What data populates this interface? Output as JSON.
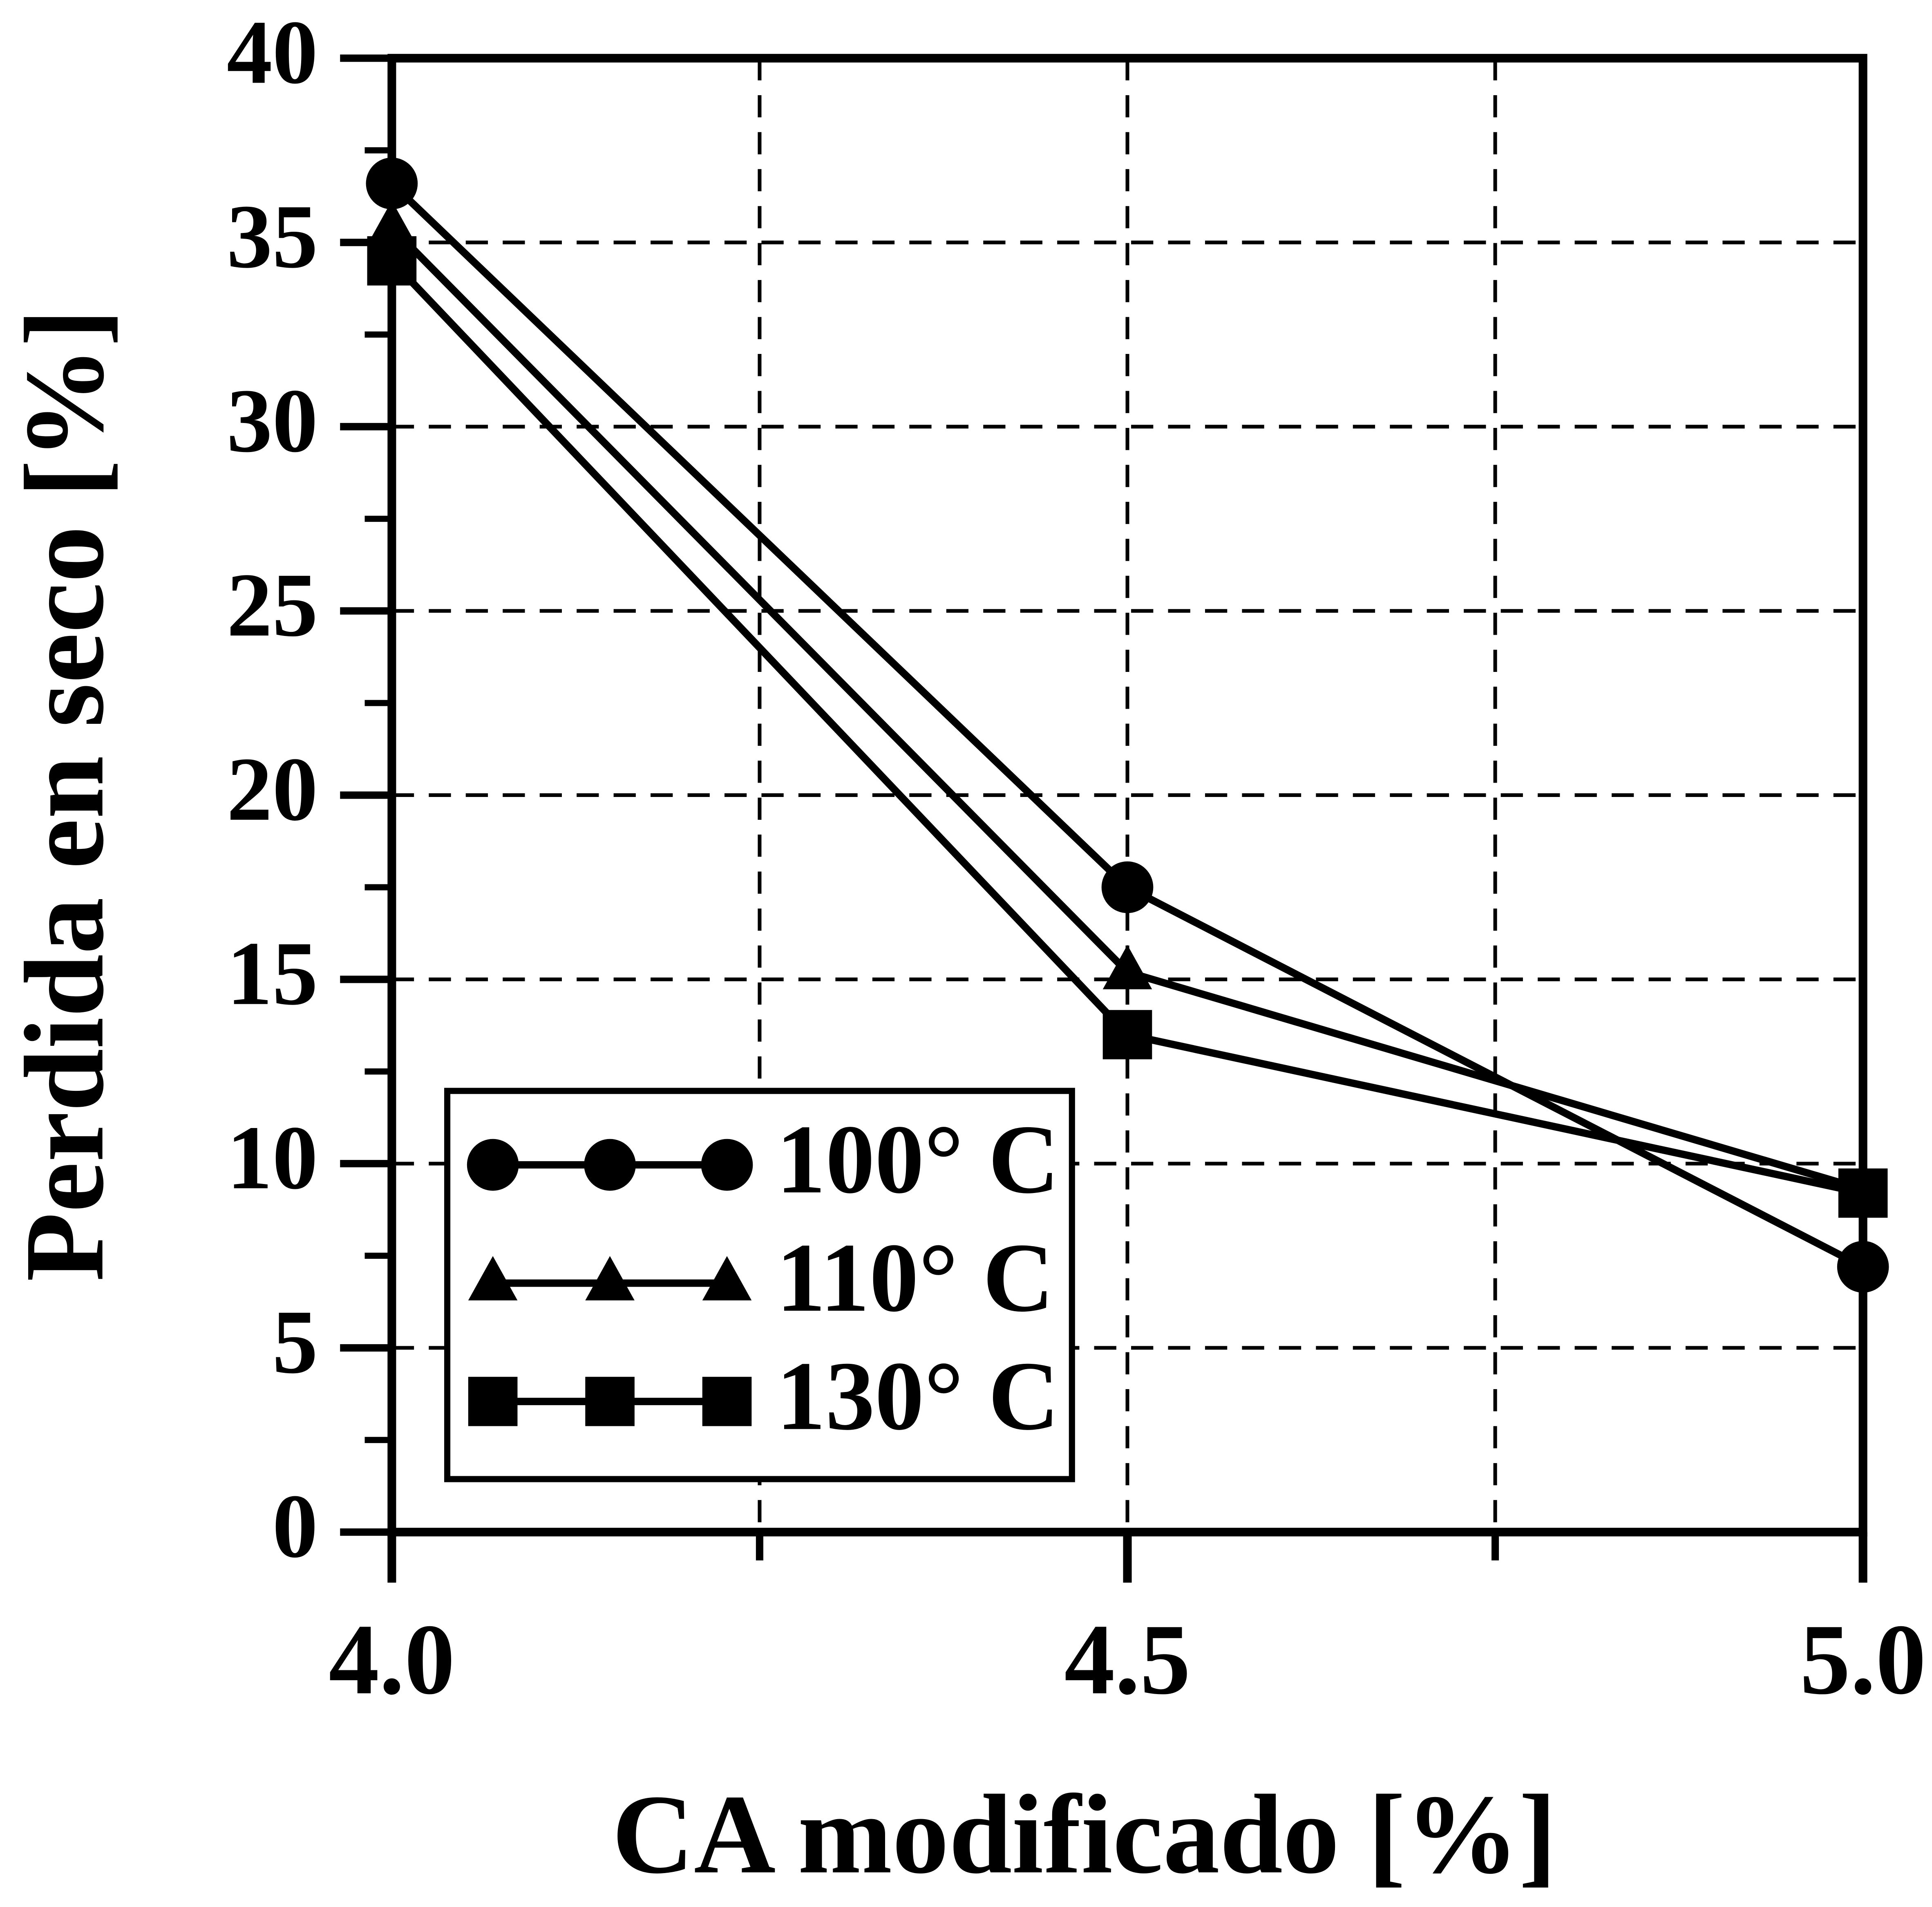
{
  "chart_data": {
    "type": "line",
    "x_label": "CA modificado [%]",
    "y_label": "Perdida en seco [%]",
    "x": [
      4.0,
      4.5,
      5.0
    ],
    "series": [
      {
        "name": "100° C",
        "color": "#000000",
        "marker": "circle",
        "values": [
          36.6,
          17.5,
          7.2
        ]
      },
      {
        "name": "110° C",
        "color": "#000000",
        "marker": "triangle",
        "values": [
          35.4,
          15.2,
          9.3
        ]
      },
      {
        "name": "130° C",
        "color": "#000000",
        "marker": "square",
        "values": [
          34.5,
          13.5,
          9.2
        ]
      }
    ],
    "xlim": [
      4.0,
      5.0
    ],
    "xticks": [
      {
        "value": 4.0,
        "label": "4.0"
      },
      {
        "value": 4.5,
        "label": "4.5"
      },
      {
        "value": 5.0,
        "label": "5.0"
      }
    ],
    "xminorticks": [
      4.25,
      4.75
    ],
    "ylim": [
      0,
      40
    ],
    "yticks": [
      0,
      5,
      10,
      15,
      20,
      25,
      30,
      35,
      40
    ],
    "yminorticks": [
      2.5,
      7.5,
      12.5,
      17.5,
      22.5,
      27.5,
      32.5,
      37.5
    ],
    "grid": true,
    "legend_loc": "lower left"
  }
}
